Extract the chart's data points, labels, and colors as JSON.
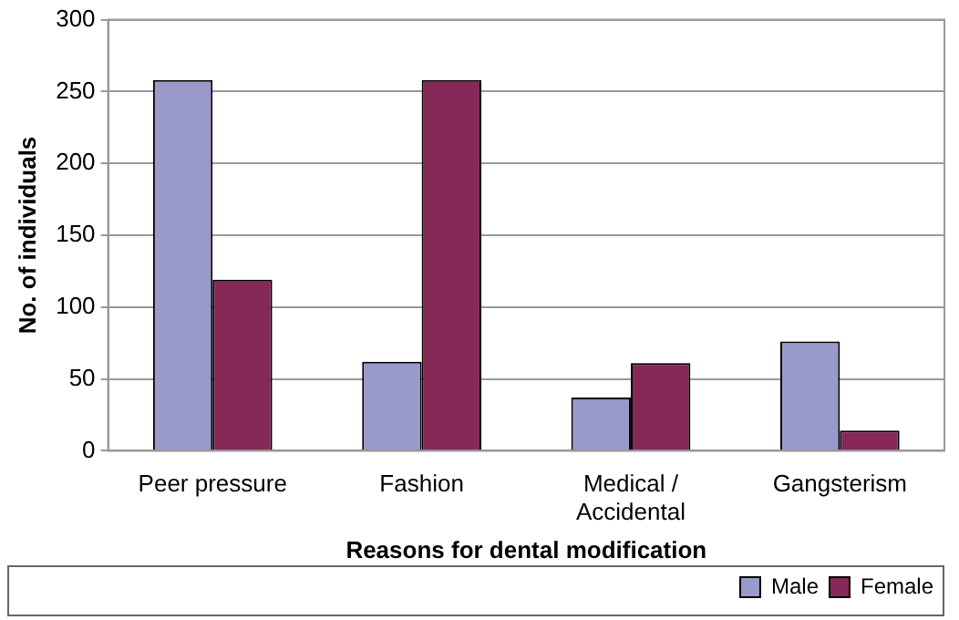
{
  "chart_data": {
    "type": "bar",
    "xlabel": "Reasons for dental modification",
    "ylabel": "No. of individuals",
    "categories": [
      "Peer pressure",
      "Fashion",
      "Medical / Accidental",
      "Gangsterism"
    ],
    "series": [
      {
        "name": "Male",
        "color": "#9999cc",
        "values": [
          258,
          62,
          37,
          76
        ]
      },
      {
        "name": "Female",
        "color": "#862858",
        "values": [
          119,
          258,
          61,
          14
        ]
      }
    ],
    "ylim": [
      0,
      300
    ],
    "yticks": [
      0,
      50,
      100,
      150,
      200,
      250,
      300
    ],
    "grid": "y",
    "legend": "bottom right"
  }
}
